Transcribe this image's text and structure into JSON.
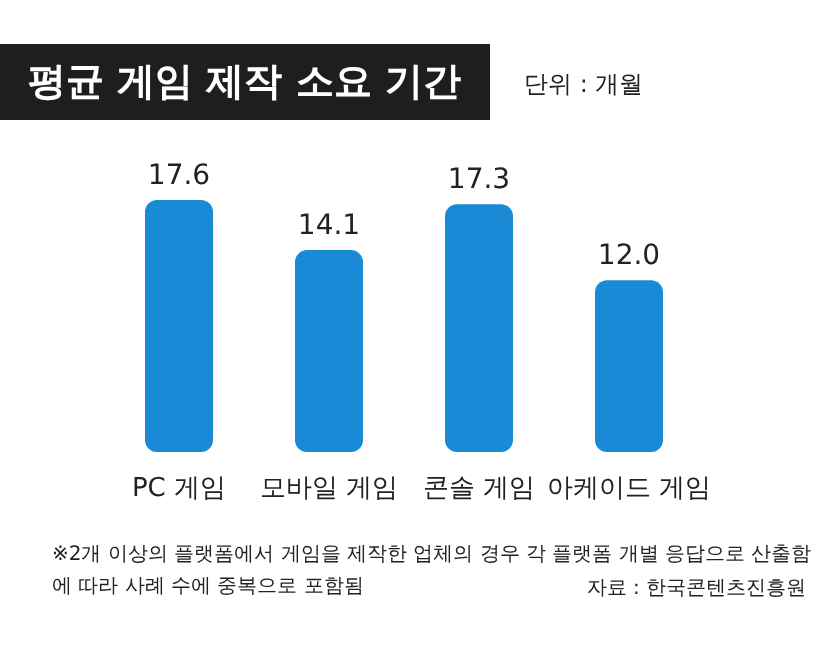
{
  "chart_data": {
    "type": "bar",
    "title": "평균 게임 제작 소요 기간",
    "subtitle": "단위 : 개월",
    "categories": [
      "PC 게임",
      "모바일 게임",
      "콘솔 게임",
      "아케이드 게임"
    ],
    "values": [
      17.6,
      14.1,
      17.3,
      12.0
    ],
    "value_labels": [
      "17.6",
      "14.1",
      "17.3",
      "12.0"
    ],
    "color": "#1a8ad6",
    "annotations": [
      "※2개 이상의 플랫폼에서 게임을 제작한 업체의 경우 각 플랫폼 개별 응답으로 산출함에 따라 사례 수에 중복으로 포함됨",
      "자료 : 한국콘텐츠진흥원"
    ]
  }
}
